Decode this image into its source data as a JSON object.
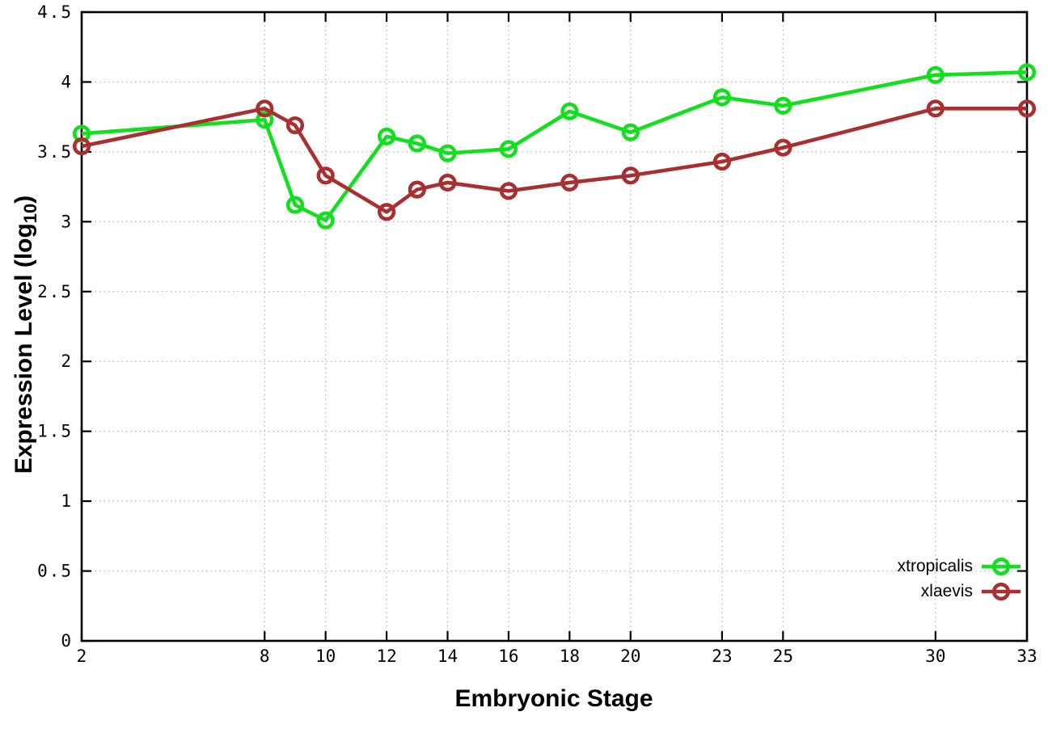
{
  "figure": {
    "x_label": "Embryonic Stage",
    "y_label_main": "Expression Level (log",
    "y_label_sub": "10",
    "y_label_close": ")",
    "background_color": "#ffffff",
    "border_color": "#000000",
    "grid_color": "#b4b4b4",
    "tick_label_color": "#000000"
  },
  "chart_data": {
    "type": "line",
    "title": "",
    "xlabel": "Embryonic Stage",
    "ylabel": "Expression Level (log10)",
    "x": [
      2,
      8,
      9,
      10,
      12,
      13,
      14,
      16,
      18,
      20,
      23,
      25,
      30,
      33
    ],
    "series": [
      {
        "name": "xtropicalis",
        "color": "#12e01e",
        "marker": "open-circle",
        "values": [
          3.63,
          3.73,
          3.12,
          3.01,
          3.61,
          3.56,
          3.49,
          3.52,
          3.79,
          3.64,
          3.89,
          3.83,
          4.05,
          4.07
        ]
      },
      {
        "name": "xlaevis",
        "color": "#a83030",
        "marker": "open-circle",
        "values": [
          3.54,
          3.81,
          3.69,
          3.33,
          3.07,
          3.23,
          3.28,
          3.22,
          3.28,
          3.33,
          3.43,
          3.53,
          3.81,
          3.81
        ]
      }
    ],
    "xlim": [
      2,
      33
    ],
    "ylim": [
      0,
      4.5
    ],
    "x_ticks": [
      2,
      8,
      10,
      12,
      14,
      16,
      18,
      20,
      23,
      25,
      30,
      33
    ],
    "x_tick_labels": [
      "2",
      "8",
      "10",
      "12",
      "14",
      "16",
      "18",
      "20",
      "23",
      "25",
      "30",
      "33"
    ],
    "y_ticks": [
      0,
      0.5,
      1,
      1.5,
      2,
      2.5,
      3,
      3.5,
      4,
      4.5
    ],
    "y_tick_labels": [
      "0",
      "0.5",
      "1",
      "1.5",
      "2",
      "2.5",
      "3",
      "3.5",
      "4",
      "4.5"
    ],
    "grid": true,
    "grid_style": "dotted",
    "legend_position": "bottom-right"
  }
}
